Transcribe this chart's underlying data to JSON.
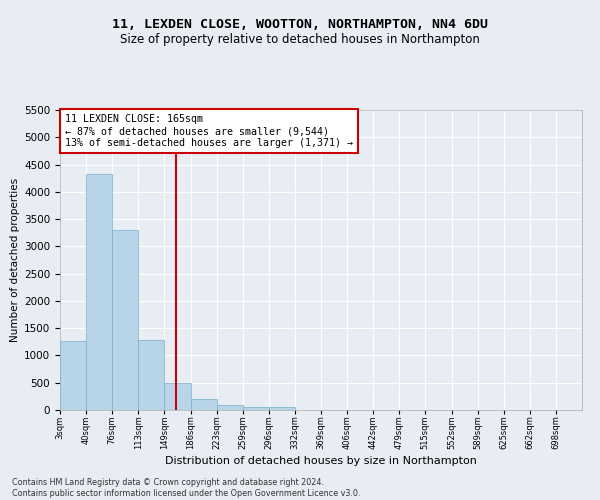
{
  "title": "11, LEXDEN CLOSE, WOOTTON, NORTHAMPTON, NN4 6DU",
  "subtitle": "Size of property relative to detached houses in Northampton",
  "xlabel": "Distribution of detached houses by size in Northampton",
  "ylabel": "Number of detached properties",
  "footer_line1": "Contains HM Land Registry data © Crown copyright and database right 2024.",
  "footer_line2": "Contains public sector information licensed under the Open Government Licence v3.0.",
  "annotation_title": "11 LEXDEN CLOSE: 165sqm",
  "annotation_line1": "← 87% of detached houses are smaller (9,544)",
  "annotation_line2": "13% of semi-detached houses are larger (1,371) →",
  "bin_edges": [
    3,
    40,
    76,
    113,
    149,
    186,
    223,
    259,
    296,
    332,
    369,
    406,
    442,
    479,
    515,
    552,
    589,
    625,
    662,
    698,
    735
  ],
  "bar_values": [
    1270,
    4330,
    3300,
    1290,
    490,
    210,
    85,
    60,
    50,
    0,
    0,
    0,
    0,
    0,
    0,
    0,
    0,
    0,
    0,
    0
  ],
  "bar_color": "#b8d4e8",
  "bar_edge_color": "#7aaec8",
  "vline_color": "#cc0000",
  "vline_x": 165,
  "annotation_box_color": "#cc0000",
  "background_color": "#e8edf4",
  "ylim": [
    0,
    5500
  ],
  "yticks": [
    0,
    500,
    1000,
    1500,
    2000,
    2500,
    3000,
    3500,
    4000,
    4500,
    5000,
    5500
  ],
  "title_fontsize": 9.5,
  "subtitle_fontsize": 8.5
}
